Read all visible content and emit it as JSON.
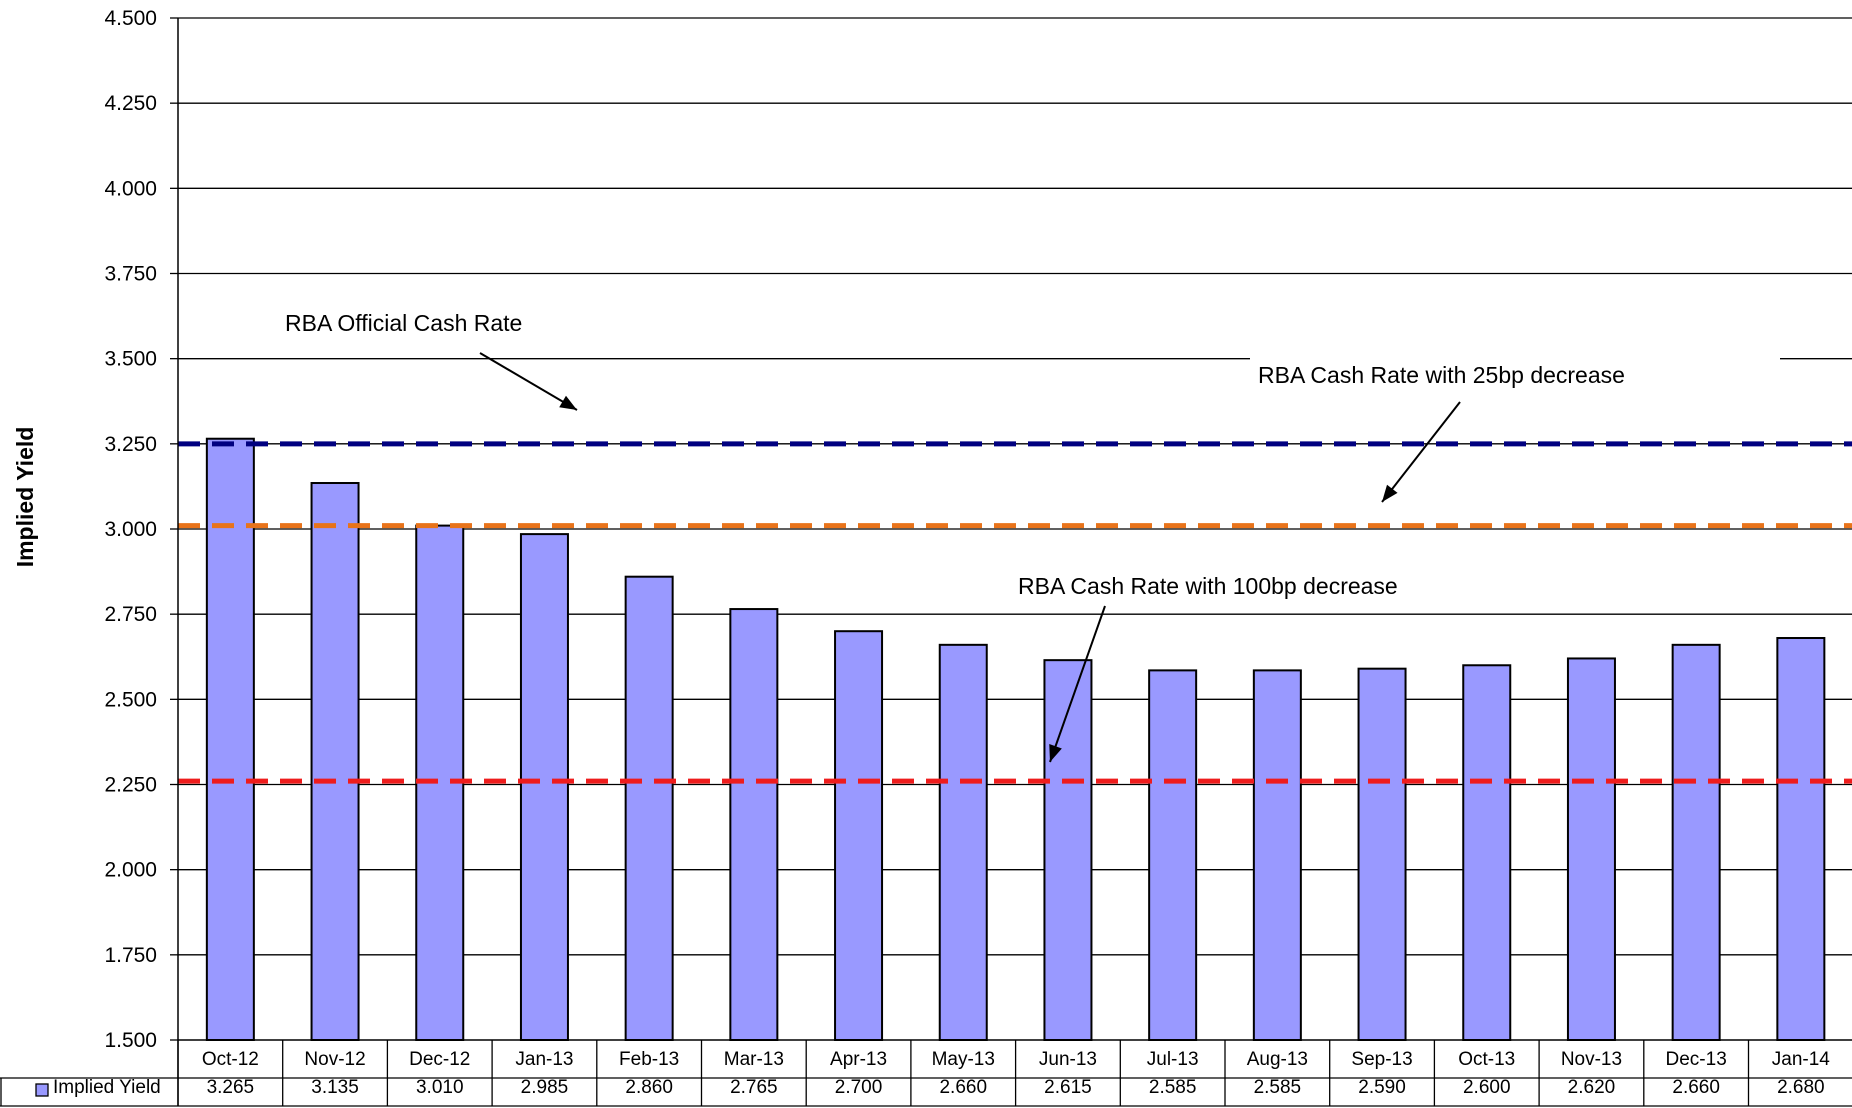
{
  "chart_data": {
    "type": "bar",
    "ylabel": "Implied Yield",
    "ylim": [
      1.5,
      4.5
    ],
    "yticks": [
      "1.500",
      "1.750",
      "2.000",
      "2.250",
      "2.500",
      "2.750",
      "3.000",
      "3.250",
      "3.500",
      "3.750",
      "4.000",
      "4.250",
      "4.500"
    ],
    "grid": true,
    "categories": [
      "Oct-12",
      "Nov-12",
      "Dec-12",
      "Jan-13",
      "Feb-13",
      "Mar-13",
      "Apr-13",
      "May-13",
      "Jun-13",
      "Jul-13",
      "Aug-13",
      "Sep-13",
      "Oct-13",
      "Nov-13",
      "Dec-13",
      "Jan-14"
    ],
    "series": [
      {
        "name": "Implied Yield",
        "color": "#9999ff",
        "values": [
          3.265,
          3.135,
          3.01,
          2.985,
          2.86,
          2.765,
          2.7,
          2.66,
          2.615,
          2.585,
          2.585,
          2.59,
          2.6,
          2.62,
          2.66,
          2.68
        ],
        "labels": [
          "3.265",
          "3.135",
          "3.010",
          "2.985",
          "2.860",
          "2.765",
          "2.700",
          "2.660",
          "2.615",
          "2.585",
          "2.585",
          "2.590",
          "2.600",
          "2.620",
          "2.660",
          "2.680"
        ]
      }
    ],
    "reference_lines": [
      {
        "value": 3.25,
        "color": "#000080",
        "style": "dashed"
      },
      {
        "value": 3.01,
        "color": "#e8731a",
        "style": "dashed"
      },
      {
        "value": 2.26,
        "color": "#ee1c1c",
        "style": "dashed"
      }
    ],
    "annotations": [
      {
        "text": "RBA Official Cash Rate",
        "points_to": 3.25
      },
      {
        "text": "RBA Cash Rate with 25bp decrease",
        "points_to": 3.01
      },
      {
        "text": "RBA Cash Rate with 100bp decrease",
        "points_to": 2.26
      }
    ],
    "data_table": true,
    "legend": "data-table-left"
  }
}
